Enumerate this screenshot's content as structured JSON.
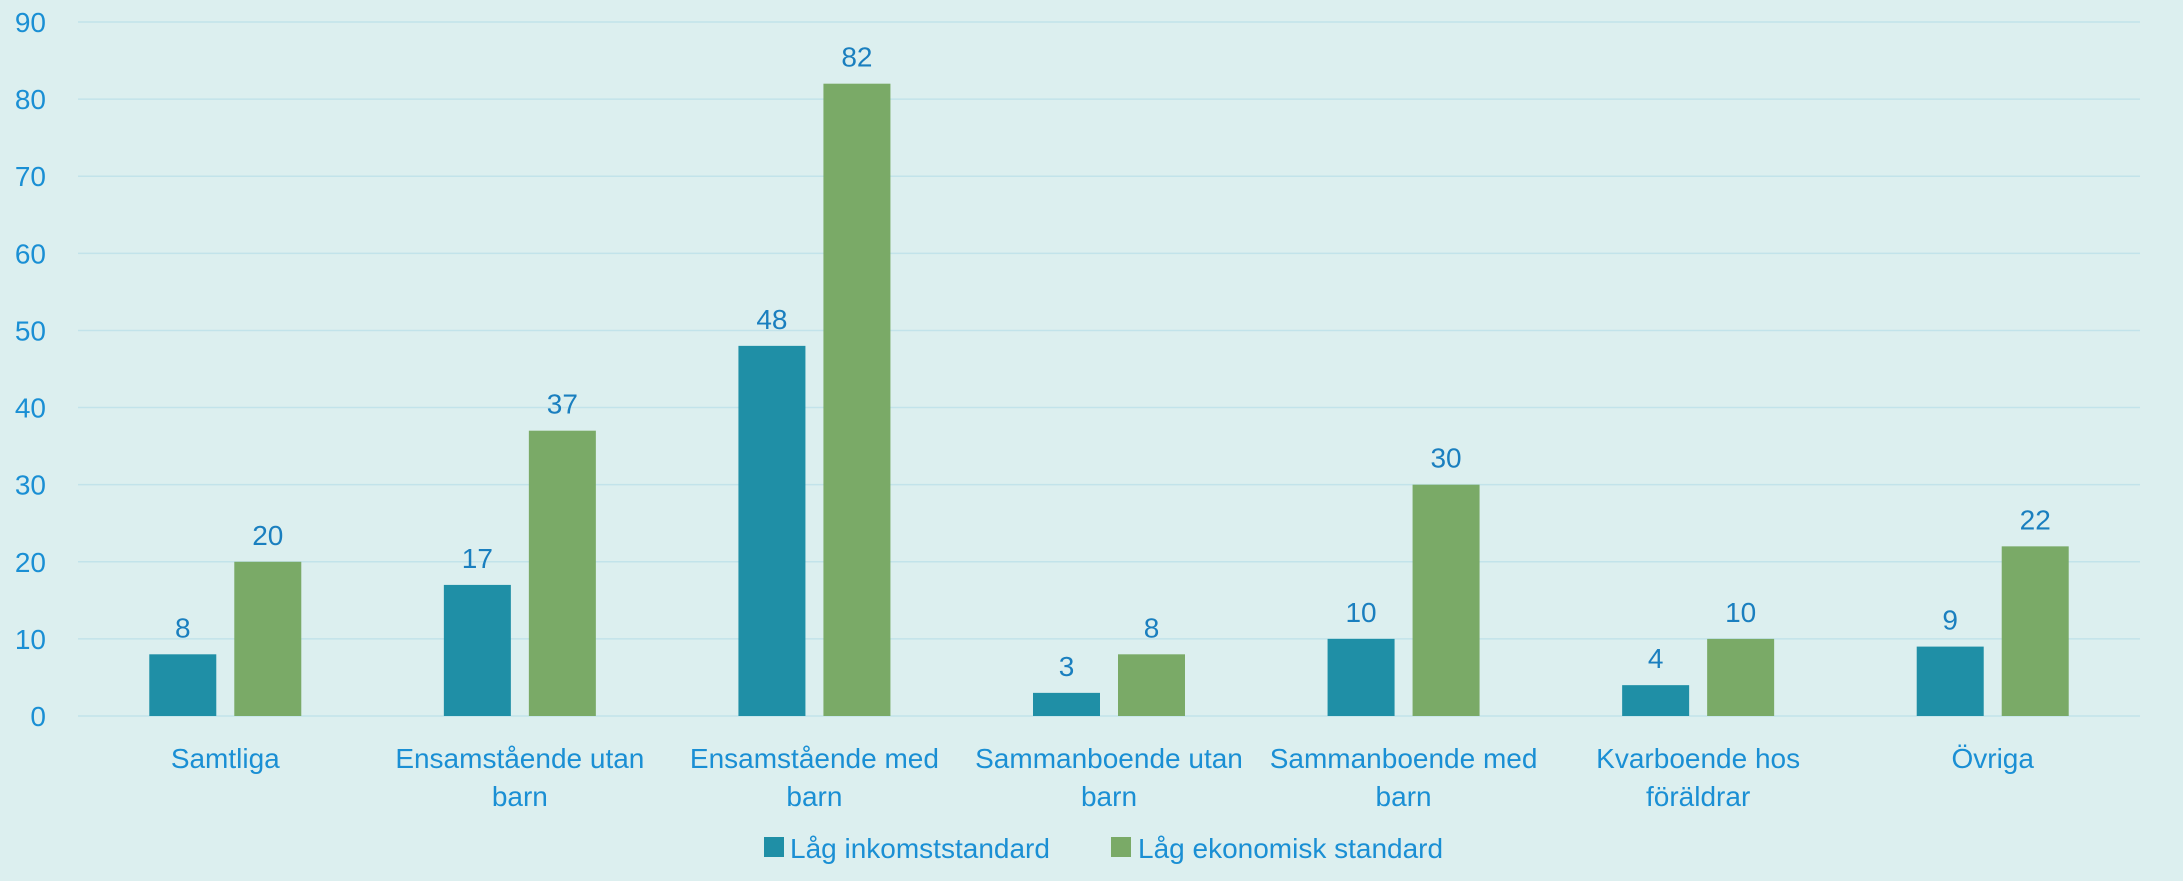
{
  "chart_data": {
    "type": "bar",
    "categories": [
      [
        "Samtliga"
      ],
      [
        "Ensamstående utan",
        "barn"
      ],
      [
        "Ensamstående med",
        "barn"
      ],
      [
        "Sammanboende utan",
        "barn"
      ],
      [
        "Sammanboende med",
        "barn"
      ],
      [
        "Kvarboende hos",
        "föräldrar"
      ],
      [
        "Övriga"
      ]
    ],
    "series": [
      {
        "name": "Låg inkomststandard",
        "values": [
          8,
          17,
          48,
          3,
          10,
          4,
          9
        ],
        "color": "#1f8fa6"
      },
      {
        "name": "Låg ekonomisk standard",
        "values": [
          20,
          37,
          82,
          8,
          30,
          10,
          22
        ],
        "color": "#7aaa67"
      }
    ],
    "yticks": [
      "0",
      "10",
      "20",
      "30",
      "40",
      "50",
      "60",
      "70",
      "80",
      "90"
    ],
    "ylim": [
      0,
      90
    ],
    "grid": true,
    "legend_position": "bottom",
    "colors": {
      "background": "#dcefef",
      "grid": "#c2e3ea",
      "text": "#1a8fd4"
    }
  }
}
